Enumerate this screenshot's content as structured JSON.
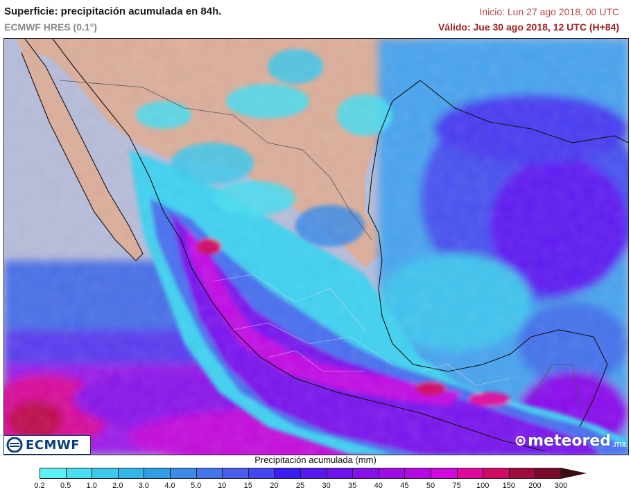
{
  "header": {
    "title": "Superficie: precipitación acumulada en 84h.",
    "model": "ECMWF HRES (0.1°)",
    "init": "Inicio: Lun 27 ago 2018, 00 UTC",
    "valid": "Válido: Jue 30 ago 2018, 12 UTC (H+84)"
  },
  "legend": {
    "title": "Precipitación acumulada (mm)",
    "ticks": [
      "0.2",
      "0.5",
      "1.0",
      "2.0",
      "3.0",
      "4.0",
      "5.0",
      "10",
      "15",
      "20",
      "25",
      "30",
      "35",
      "40",
      "45",
      "50",
      "75",
      "100",
      "150",
      "200",
      "300"
    ],
    "colors": [
      "#5cf2f5",
      "#49def2",
      "#3cc9ee",
      "#35b6ea",
      "#2f9fe5",
      "#3b8cea",
      "#4475ec",
      "#4a5ff0",
      "#4248f5",
      "#3b1cf6",
      "#5818f2",
      "#6e14ef",
      "#8710ec",
      "#9f0ce8",
      "#b509e4",
      "#cf08df",
      "#e0089e",
      "#d00866",
      "#a10a3e",
      "#7a0b2a"
    ],
    "arrow_color": "#3a0d12"
  },
  "logos": {
    "left": "ECMWF",
    "right": "meteored",
    "right_tld": ".mx"
  },
  "map": {
    "land_color": "#dcae9b",
    "sea_color": "#b7bdda"
  }
}
